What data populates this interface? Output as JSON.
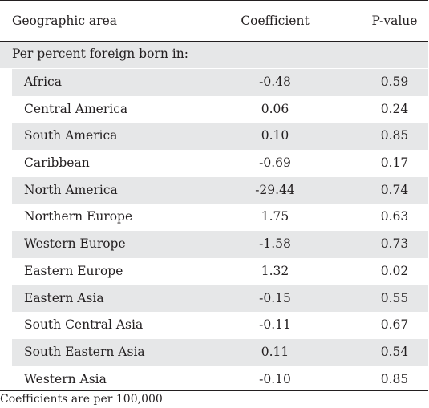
{
  "table": {
    "headers": {
      "area": "Geographic area",
      "coefficient": "Coefficient",
      "pvalue": "P-value"
    },
    "section_label": "Per percent foreign born in:",
    "rows": [
      {
        "area": "Africa",
        "coefficient": "-0.48",
        "pvalue": "0.59"
      },
      {
        "area": "Central America",
        "coefficient": "0.06",
        "pvalue": "0.24"
      },
      {
        "area": "South America",
        "coefficient": "0.10",
        "pvalue": "0.85"
      },
      {
        "area": "Caribbean",
        "coefficient": "-0.69",
        "pvalue": "0.17"
      },
      {
        "area": "North America",
        "coefficient": "-29.44",
        "pvalue": "0.74"
      },
      {
        "area": "Northern Europe",
        "coefficient": "1.75",
        "pvalue": "0.63"
      },
      {
        "area": "Western Europe",
        "coefficient": "-1.58",
        "pvalue": "0.73"
      },
      {
        "area": "Eastern Europe",
        "coefficient": "1.32",
        "pvalue": "0.02"
      },
      {
        "area": "Eastern Asia",
        "coefficient": "-0.15",
        "pvalue": "0.55"
      },
      {
        "area": "South Central Asia",
        "coefficient": "-0.11",
        "pvalue": "0.67"
      },
      {
        "area": "South Eastern Asia",
        "coefficient": "0.11",
        "pvalue": "0.54"
      },
      {
        "area": "Western Asia",
        "coefficient": "-0.10",
        "pvalue": "0.85"
      }
    ],
    "footnote": "Coefficients are per 100,000",
    "colors": {
      "shade": "#e6e7e8",
      "rule": "#231f20",
      "text": "#231f20"
    }
  }
}
